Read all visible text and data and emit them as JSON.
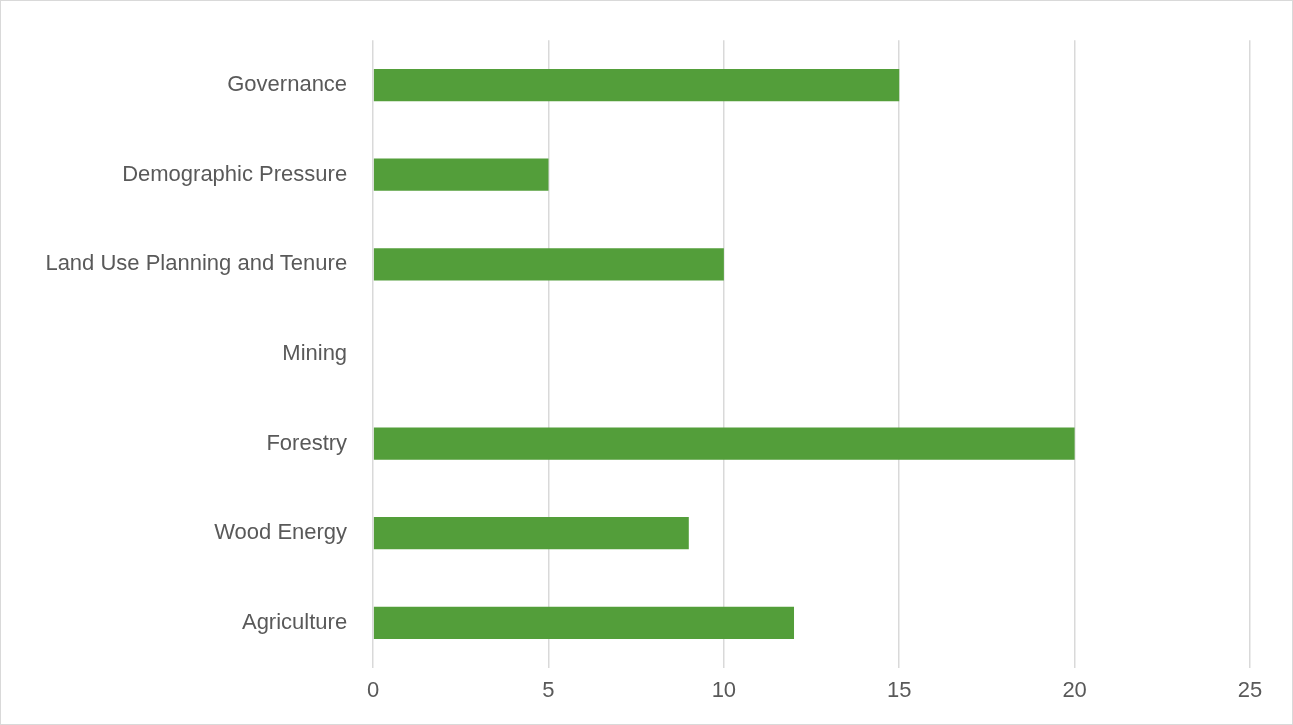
{
  "chart_data": {
    "type": "bar",
    "orientation": "horizontal",
    "categories": [
      "Governance",
      "Demographic Pressure",
      "Land Use Planning and Tenure",
      "Mining",
      "Forestry",
      "Wood Energy",
      "Agriculture"
    ],
    "values": [
      15,
      5,
      10,
      0,
      20,
      9,
      12
    ],
    "color": "#539e3a",
    "xlim": [
      0,
      25
    ],
    "xticks": [
      0,
      5,
      10,
      15,
      20,
      25
    ],
    "grid": "x",
    "legend": false
  }
}
